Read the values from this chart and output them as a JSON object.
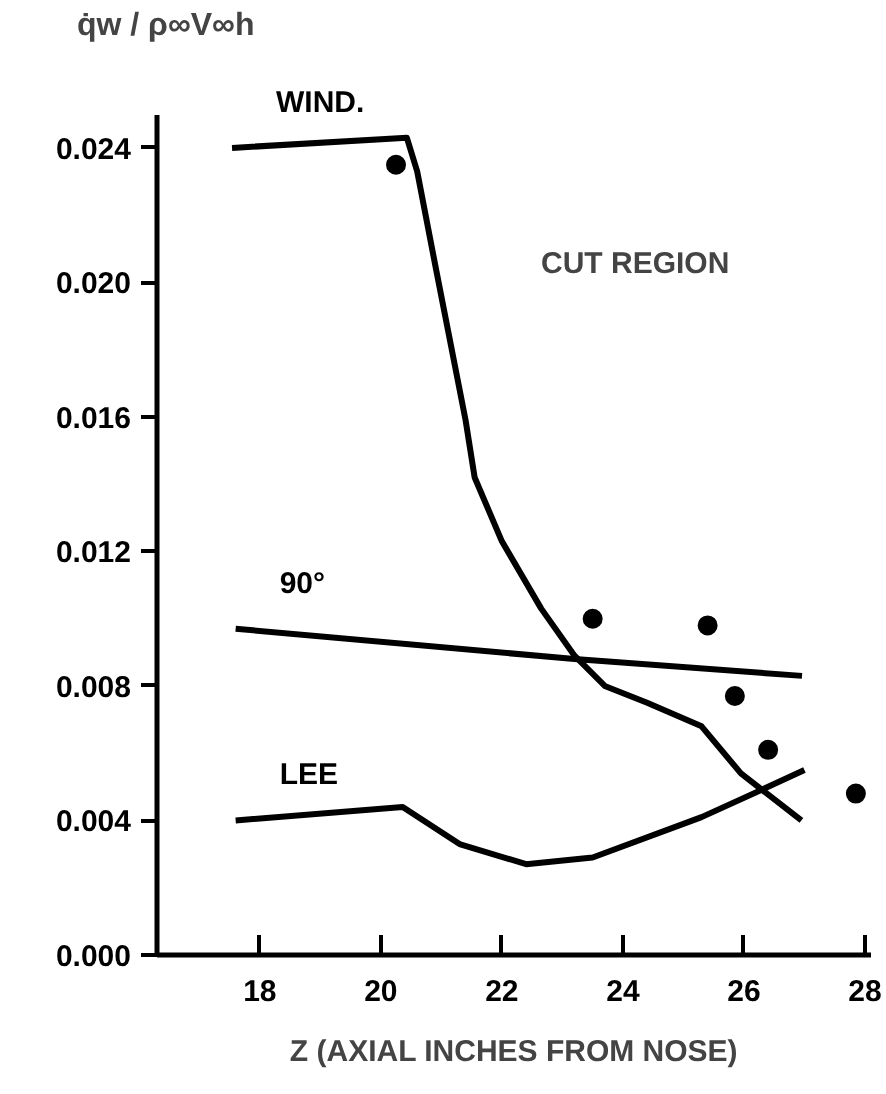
{
  "chart_data": {
    "type": "line",
    "xlabel": "Z (AXIAL INCHES FROM NOSE)",
    "ylabel": "q̇w / ρ∞V∞h",
    "xlim": [
      16.3,
      28.1
    ],
    "ylim": [
      0,
      0.025
    ],
    "xticks": [
      18,
      20,
      22,
      24,
      26,
      28
    ],
    "yticks": [
      {
        "value": 0,
        "label": "0.000"
      },
      {
        "value": 0.004,
        "label": "0.004"
      },
      {
        "value": 0.008,
        "label": "0.008"
      },
      {
        "value": 0.012,
        "label": "0.012"
      },
      {
        "value": 0.016,
        "label": "0.016"
      },
      {
        "value": 0.02,
        "label": "0.020"
      },
      {
        "value": 0.024,
        "label": "0.024"
      }
    ],
    "grid": false,
    "marker": "none",
    "line_style": "solid",
    "annotations": [
      "CUT REGION"
    ],
    "series": [
      {
        "name": "WIND.",
        "color": "#000000",
        "x": [
          17.54,
          20.43,
          20.6,
          20.9,
          21.4,
          21.55,
          22.0,
          22.65,
          23.2,
          23.7,
          24.4,
          25.3,
          25.95,
          26.95
        ],
        "values": [
          0.024,
          0.0243,
          0.0233,
          0.0205,
          0.0159,
          0.0142,
          0.0123,
          0.0103,
          0.0089,
          0.008,
          0.0075,
          0.0068,
          0.0054,
          0.004
        ]
      },
      {
        "name": "90°",
        "color": "#000000",
        "x": [
          17.6,
          23.2,
          26.96
        ],
        "values": [
          0.0097,
          0.0088,
          0.0083
        ]
      },
      {
        "name": "LEE",
        "color": "#000000",
        "x": [
          17.6,
          20.36,
          21.3,
          22.4,
          23.5,
          25.3,
          26.4,
          27.0
        ],
        "values": [
          0.004,
          0.0044,
          0.0033,
          0.0027,
          0.0029,
          0.0041,
          0.005,
          0.0055
        ]
      },
      {
        "type": "scatter",
        "marker": "circle",
        "color": "#000000",
        "x": [
          20.25,
          23.5,
          25.4,
          25.85,
          26.4,
          27.85
        ],
        "values": [
          0.0235,
          0.01,
          0.0098,
          0.0077,
          0.0061,
          0.0048
        ]
      }
    ]
  }
}
